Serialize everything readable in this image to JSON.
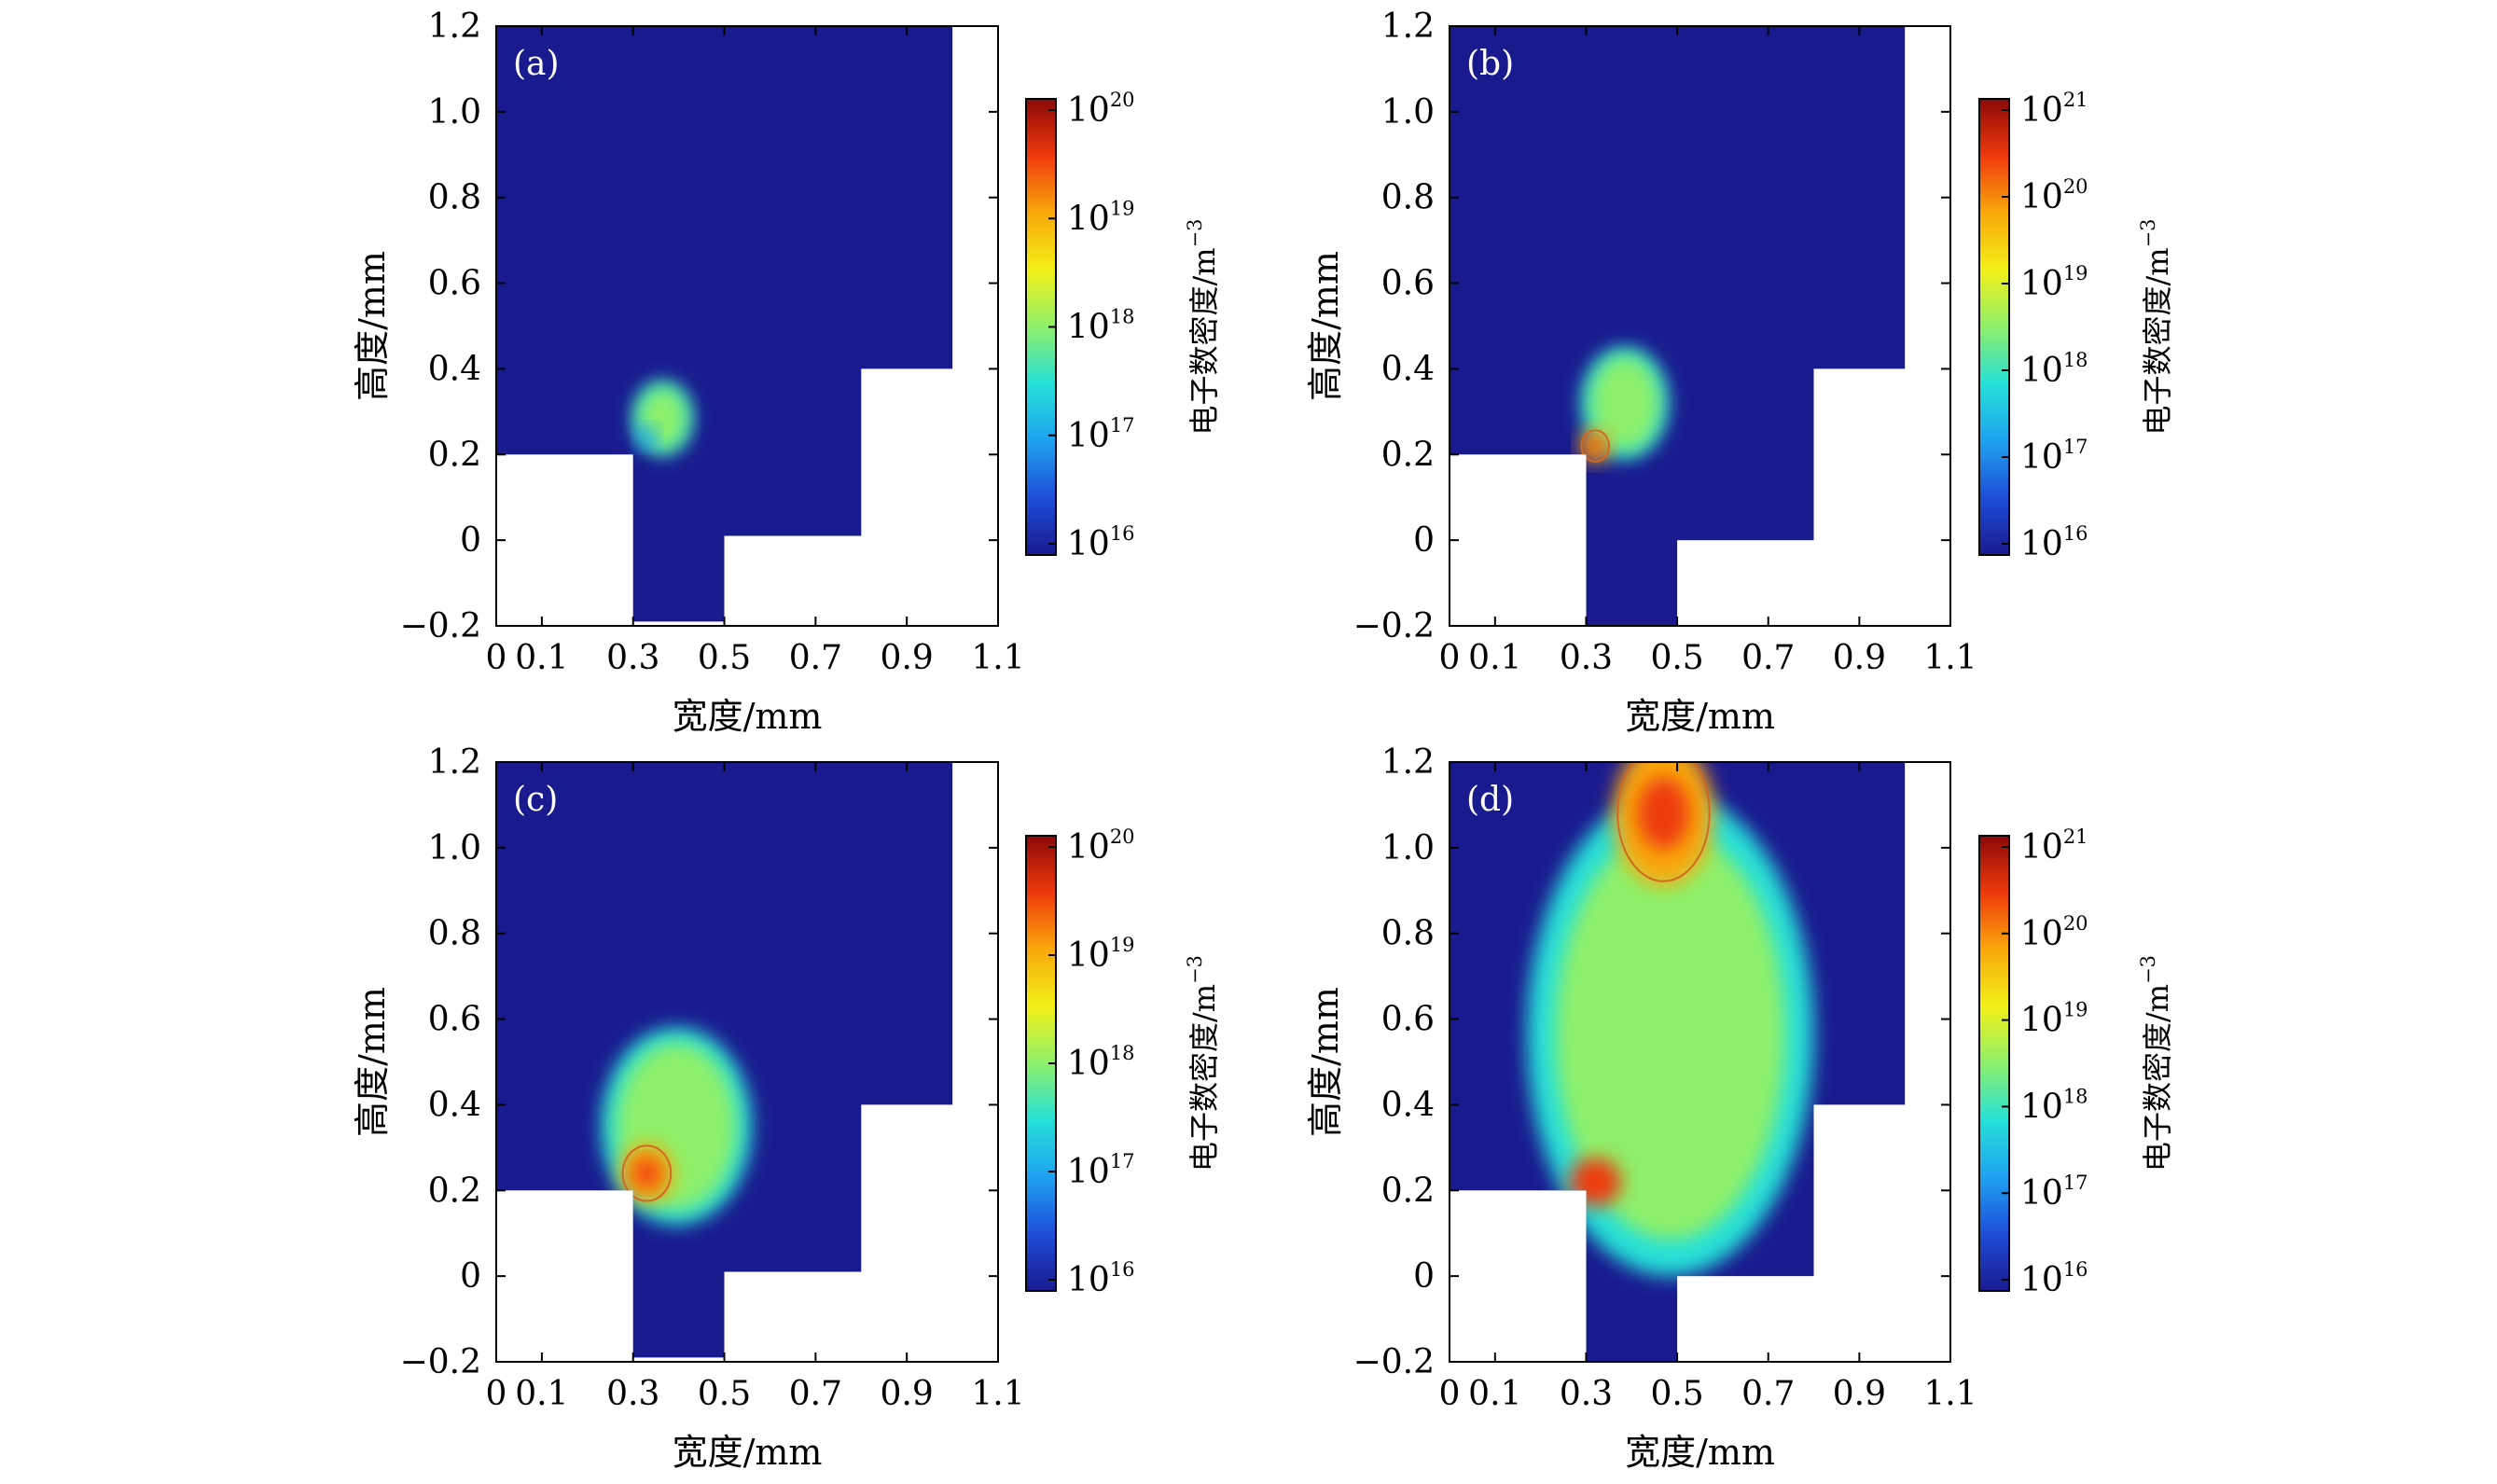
{
  "figure": {
    "colormap": [
      "#1a1a8f",
      "#1e4dd8",
      "#1fa2f0",
      "#25e0d8",
      "#8ef06a",
      "#f2f018",
      "#f9a80c",
      "#ee3a0c",
      "#8c0808"
    ],
    "background_color": "#1a1a8f",
    "contour_color": "#d2691e",
    "panels": [
      {
        "id": "a",
        "label": "(a)",
        "colorbar_label": "电子数密度/m",
        "colorbar_unit_exp": "−3",
        "colorbar_ticks": [
          {
            "mantissa": "10",
            "exp": "20"
          },
          {
            "mantissa": "10",
            "exp": "19"
          },
          {
            "mantissa": "10",
            "exp": "18"
          },
          {
            "mantissa": "10",
            "exp": "17"
          },
          {
            "mantissa": "10",
            "exp": "16"
          }
        ]
      },
      {
        "id": "b",
        "label": "(b)",
        "colorbar_label": "电子数密度/m",
        "colorbar_unit_exp": "−3",
        "colorbar_ticks": [
          {
            "mantissa": "10",
            "exp": "21"
          },
          {
            "mantissa": "10",
            "exp": "20"
          },
          {
            "mantissa": "10",
            "exp": "19"
          },
          {
            "mantissa": "10",
            "exp": "18"
          },
          {
            "mantissa": "10",
            "exp": "17"
          },
          {
            "mantissa": "10",
            "exp": "16"
          }
        ]
      },
      {
        "id": "c",
        "label": "(c)",
        "colorbar_label": "电子数密度/m",
        "colorbar_unit_exp": "−3",
        "colorbar_ticks": [
          {
            "mantissa": "10",
            "exp": "20"
          },
          {
            "mantissa": "10",
            "exp": "19"
          },
          {
            "mantissa": "10",
            "exp": "18"
          },
          {
            "mantissa": "10",
            "exp": "17"
          },
          {
            "mantissa": "10",
            "exp": "16"
          }
        ]
      },
      {
        "id": "d",
        "label": "(d)",
        "colorbar_label": "电子数密度/m",
        "colorbar_unit_exp": "−3",
        "colorbar_ticks": [
          {
            "mantissa": "10",
            "exp": "21"
          },
          {
            "mantissa": "10",
            "exp": "20"
          },
          {
            "mantissa": "10",
            "exp": "19"
          },
          {
            "mantissa": "10",
            "exp": "18"
          },
          {
            "mantissa": "10",
            "exp": "17"
          },
          {
            "mantissa": "10",
            "exp": "16"
          }
        ]
      }
    ]
  },
  "chart_data": [
    {
      "type": "heatmap",
      "title": "(a)",
      "xlabel": "宽度/mm",
      "ylabel": "高度/mm",
      "xlim": [
        0,
        1.1
      ],
      "ylim": [
        -0.2,
        1.2
      ],
      "xticks": [
        0,
        0.1,
        0.3,
        0.5,
        0.7,
        0.9,
        1.1
      ],
      "xtick_labels": [
        "0",
        "0.1",
        "0.3",
        "0.5",
        "0.7",
        "0.9",
        "1.1"
      ],
      "yticks": [
        1.2,
        1.0,
        0.8,
        0.6,
        0.4,
        0.2,
        0,
        -0.2
      ],
      "ytick_labels": [
        "1.2",
        "1.0",
        "0.8",
        "0.6",
        "0.4",
        "0.2",
        "0",
        "−0.2"
      ],
      "colorbar": {
        "label": "电子数密度/m⁻³",
        "scale": "log",
        "range": [
          1e+16,
          1e+20
        ]
      },
      "domain_polygon": [
        [
          0,
          0.2
        ],
        [
          0.3,
          0.2
        ],
        [
          0.3,
          -0.19
        ],
        [
          0.5,
          -0.19
        ],
        [
          0.5,
          0.01
        ],
        [
          0.8,
          0.01
        ],
        [
          0.8,
          0.4
        ],
        [
          1.0,
          0.4
        ],
        [
          1.0,
          1.2
        ],
        [
          0,
          1.2
        ]
      ],
      "plasma_region": {
        "extent_x": [
          0.3,
          0.43
        ],
        "extent_y": [
          0.2,
          0.37
        ],
        "peak_location": [
          0.33,
          0.24
        ],
        "peak_density": 3e+17
      }
    },
    {
      "type": "heatmap",
      "title": "(b)",
      "xlabel": "宽度/mm",
      "ylabel": "高度/mm",
      "xlim": [
        0,
        1.1
      ],
      "ylim": [
        -0.2,
        1.2
      ],
      "xticks": [
        0,
        0.1,
        0.3,
        0.5,
        0.7,
        0.9,
        1.1
      ],
      "xtick_labels": [
        "0",
        "0.1",
        "0.3",
        "0.5",
        "0.7",
        "0.9",
        "1.1"
      ],
      "yticks": [
        1.2,
        1.0,
        0.8,
        0.6,
        0.4,
        0.2,
        0,
        -0.2
      ],
      "ytick_labels": [
        "1.2",
        "1.0",
        "0.8",
        "0.6",
        "0.4",
        "0.2",
        "0",
        "−0.2"
      ],
      "colorbar": {
        "label": "电子数密度/m⁻³",
        "scale": "log",
        "range": [
          1e+16,
          2e+21
        ]
      },
      "domain_polygon": [
        [
          0,
          0.2
        ],
        [
          0.3,
          0.2
        ],
        [
          0.3,
          -0.2
        ],
        [
          0.5,
          -0.2
        ],
        [
          0.5,
          0
        ],
        [
          0.8,
          0
        ],
        [
          0.8,
          0.4
        ],
        [
          1.0,
          0.4
        ],
        [
          1.0,
          1.2
        ],
        [
          0,
          1.2
        ]
      ],
      "plasma_region": {
        "extent_x": [
          0.29,
          0.48
        ],
        "extent_y": [
          0.19,
          0.45
        ],
        "peak_location": [
          0.32,
          0.22
        ],
        "peak_density": 1e+20
      }
    },
    {
      "type": "heatmap",
      "title": "(c)",
      "xlabel": "宽度/mm",
      "ylabel": "高度/mm",
      "xlim": [
        0,
        1.1
      ],
      "ylim": [
        -0.2,
        1.2
      ],
      "xticks": [
        0,
        0.1,
        0.3,
        0.5,
        0.7,
        0.9,
        1.1
      ],
      "xtick_labels": [
        "0",
        "0.1",
        "0.3",
        "0.5",
        "0.7",
        "0.9",
        "1.1"
      ],
      "yticks": [
        1.2,
        1.0,
        0.8,
        0.6,
        0.4,
        0.2,
        0,
        -0.2
      ],
      "ytick_labels": [
        "1.2",
        "1.0",
        "0.8",
        "0.6",
        "0.4",
        "0.2",
        "0",
        "−0.2"
      ],
      "colorbar": {
        "label": "电子数密度/m⁻³",
        "scale": "log",
        "range": [
          1e+16,
          1e+21
        ]
      },
      "domain_polygon": [
        [
          0,
          0.2
        ],
        [
          0.3,
          0.2
        ],
        [
          0.3,
          -0.19
        ],
        [
          0.5,
          -0.19
        ],
        [
          0.5,
          0.01
        ],
        [
          0.8,
          0.01
        ],
        [
          0.8,
          0.4
        ],
        [
          1.0,
          0.4
        ],
        [
          1.0,
          1.2
        ],
        [
          0,
          1.2
        ]
      ],
      "plasma_region": {
        "extent_x": [
          0.23,
          0.56
        ],
        "extent_y": [
          0.12,
          0.58
        ],
        "peak_location": [
          0.33,
          0.24
        ],
        "peak_density": 3e+20
      }
    },
    {
      "type": "heatmap",
      "title": "(d)",
      "xlabel": "宽度/mm",
      "ylabel": "高度/mm",
      "xlim": [
        0,
        1.1
      ],
      "ylim": [
        -0.2,
        1.2
      ],
      "xticks": [
        0,
        0.1,
        0.3,
        0.5,
        0.7,
        0.9,
        1.1
      ],
      "xtick_labels": [
        "0",
        "0.1",
        "0.3",
        "0.5",
        "0.7",
        "0.9",
        "1.1"
      ],
      "yticks": [
        1.2,
        1.0,
        0.8,
        0.6,
        0.4,
        0.2,
        0,
        -0.2
      ],
      "ytick_labels": [
        "1.2",
        "1.0",
        "0.8",
        "0.6",
        "0.4",
        "0.2",
        "0",
        "−0.2"
      ],
      "colorbar": {
        "label": "电子数密度/m⁻³",
        "scale": "log",
        "range": [
          1e+16,
          2e+21
        ]
      },
      "domain_polygon": [
        [
          0,
          0.2
        ],
        [
          0.3,
          0.2
        ],
        [
          0.3,
          -0.2
        ],
        [
          0.5,
          -0.2
        ],
        [
          0.5,
          0
        ],
        [
          0.8,
          0
        ],
        [
          0.8,
          0.4
        ],
        [
          1.0,
          0.4
        ],
        [
          1.0,
          1.2
        ],
        [
          0,
          1.2
        ]
      ],
      "plasma_region": {
        "extent_x": [
          0.17,
          0.8
        ],
        "extent_y": [
          0.0,
          1.13
        ],
        "peak_location": [
          0.47,
          1.08
        ],
        "peak_density": 3e+20,
        "secondary_peak": [
          0.32,
          0.22
        ]
      }
    }
  ]
}
